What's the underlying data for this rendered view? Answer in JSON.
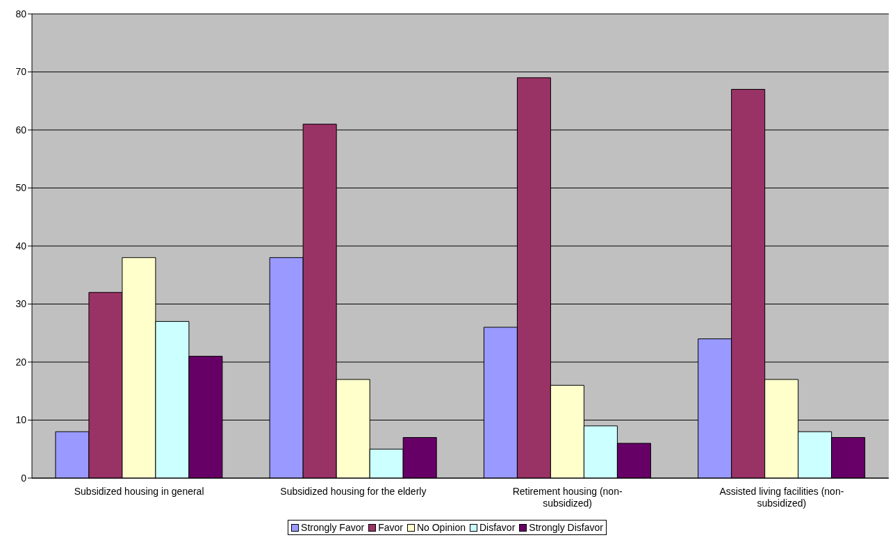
{
  "chart_data": {
    "type": "bar",
    "categories": [
      "Subsidized housing in general",
      "Subsidized housing for the elderly",
      "Retirement housing (non-subsidized)",
      "Assisted living facilities (non-subsidized)"
    ],
    "series": [
      {
        "name": "Strongly Favor",
        "color": "#9999ff",
        "values": [
          8,
          38,
          26,
          24
        ]
      },
      {
        "name": "Favor",
        "color": "#993366",
        "values": [
          32,
          61,
          69,
          67
        ]
      },
      {
        "name": "No Opinion",
        "color": "#ffffcc",
        "values": [
          38,
          17,
          16,
          17
        ]
      },
      {
        "name": "Disfavor",
        "color": "#ccffff",
        "values": [
          27,
          5,
          9,
          8
        ]
      },
      {
        "name": "Strongly Disfavor",
        "color": "#660066",
        "values": [
          21,
          7,
          6,
          7
        ]
      }
    ],
    "ylim": [
      0,
      80
    ],
    "yticks": [
      0,
      10,
      20,
      30,
      40,
      50,
      60,
      70,
      80
    ],
    "grid": "y",
    "legend": "bottom"
  }
}
